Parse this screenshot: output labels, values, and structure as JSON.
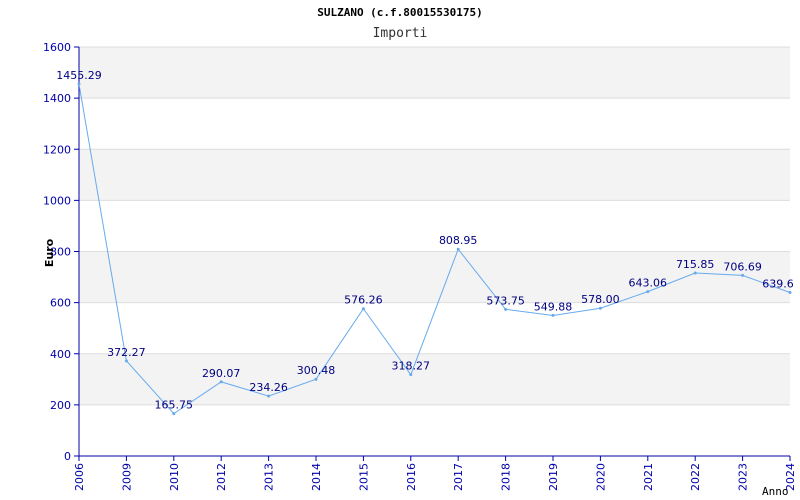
{
  "chart_data": {
    "type": "line",
    "title": "SULZANO (c.f.80015530175)",
    "subtitle": "Importi",
    "xlabel": "Anno",
    "ylabel": "Euro",
    "categories": [
      "2006",
      "2009",
      "2010",
      "2012",
      "2013",
      "2014",
      "2015",
      "2016",
      "2017",
      "2018",
      "2019",
      "2020",
      "2021",
      "2022",
      "2023",
      "2024"
    ],
    "series": [
      {
        "values": [
          1455.29,
          372.27,
          165.75,
          290.07,
          234.26,
          300.48,
          576.26,
          318.27,
          808.95,
          573.75,
          549.88,
          578.0,
          643.06,
          715.85,
          706.69,
          639.6
        ],
        "labels": [
          "1455.29",
          "372.27",
          "165.75",
          "290.07",
          "234.26",
          "300.48",
          "576.26",
          "318.27",
          "808.95",
          "573.75",
          "549.88",
          "578.00",
          "643.06",
          "715.85",
          "706.69",
          "639.6"
        ]
      }
    ],
    "yticks": [
      "0",
      "200",
      "400",
      "600",
      "800",
      "1000",
      "1200",
      "1400",
      "1600"
    ],
    "ylim": [
      0,
      1600
    ],
    "grid": true,
    "colors": {
      "line": "#66aaee",
      "band": "#f3f3f3",
      "grid": "#dddddd",
      "axis": "#0000aa",
      "label": "#000080"
    }
  }
}
